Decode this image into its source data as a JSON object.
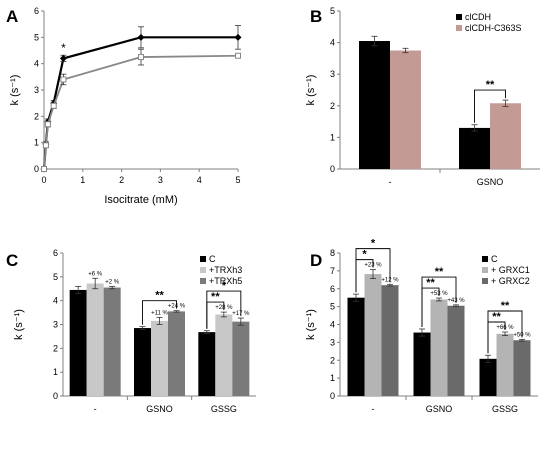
{
  "chart_data": [
    {
      "panel": "A",
      "type": "line",
      "xlabel": "Isocitrate (mM)",
      "ylabel": "k (s⁻¹)",
      "xlim": [
        0,
        5
      ],
      "ylim": [
        0,
        6
      ],
      "xticks": [
        "0",
        "1",
        "2",
        "3",
        "4",
        "5"
      ],
      "yticks": [
        "0",
        "1",
        "2",
        "3",
        "4",
        "5",
        "6"
      ],
      "series": [
        {
          "marker": "filled-diamond",
          "color": "#000000",
          "x": [
            0,
            0.05,
            0.1,
            0.25,
            0.5,
            2.5,
            5
          ],
          "y": [
            0,
            0.95,
            1.8,
            2.5,
            4.2,
            5.0,
            5.0
          ],
          "err": [
            0,
            0.08,
            0.1,
            0.1,
            0.12,
            0.4,
            0.45
          ]
        },
        {
          "marker": "open-square",
          "color": "#888888",
          "x": [
            0,
            0.05,
            0.1,
            0.25,
            0.5,
            2.5,
            5
          ],
          "y": [
            0,
            0.9,
            1.7,
            2.4,
            3.4,
            4.25,
            4.3
          ],
          "err": [
            0,
            0.08,
            0.1,
            0.1,
            0.2,
            0.3,
            0.08
          ]
        }
      ],
      "annotations": [
        {
          "text": "*",
          "x": 0.5,
          "y": 4.45
        }
      ]
    },
    {
      "panel": "B",
      "type": "bar",
      "ylabel": "k (s⁻¹)",
      "ylim": [
        0,
        5
      ],
      "yticks": [
        "0",
        "1",
        "2",
        "3",
        "4",
        "5"
      ],
      "categories": [
        "-",
        "GSNO"
      ],
      "legend_position": "top-right",
      "series": [
        {
          "name": "clCDH",
          "color": "#000000",
          "values": [
            4.05,
            1.3
          ],
          "err": [
            0.15,
            0.1
          ]
        },
        {
          "name": "clCDH-C363S",
          "color": "#c49a95",
          "values": [
            3.75,
            2.08
          ],
          "err": [
            0.07,
            0.1
          ]
        }
      ],
      "significance": [
        {
          "label": "**",
          "category": 1,
          "from": 0,
          "to": 1
        }
      ]
    },
    {
      "panel": "C",
      "type": "bar",
      "ylabel": "k (s⁻¹)",
      "ylim": [
        0,
        6
      ],
      "yticks": [
        "0",
        "1",
        "2",
        "3",
        "4",
        "5",
        "6"
      ],
      "categories": [
        "-",
        "GSNO",
        "GSSG"
      ],
      "legend_position": "top-right",
      "series": [
        {
          "name": "C",
          "color": "#000000",
          "values": [
            4.45,
            2.85,
            2.68
          ],
          "err": [
            0.15,
            0.06,
            0.06
          ],
          "pct": [
            "",
            "",
            ""
          ]
        },
        {
          "name": "+TRXh3",
          "color": "#c8c8c8",
          "values": [
            4.72,
            3.15,
            3.42
          ],
          "err": [
            0.22,
            0.15,
            0.1
          ],
          "pct": [
            "+6 %",
            "+11 %",
            "+28 %"
          ]
        },
        {
          "name": "+TRXh5",
          "color": "#7a7a7a",
          "values": [
            4.55,
            3.55,
            3.12
          ],
          "err": [
            0.05,
            0.03,
            0.15
          ],
          "pct": [
            "+2 %",
            "+24 %",
            "+17 %"
          ]
        }
      ],
      "significance": [
        {
          "label": "**",
          "category": 1,
          "from": 0,
          "to": 2
        },
        {
          "label": "**",
          "category": 2,
          "from": 0,
          "to": 1
        },
        {
          "label": "*",
          "category": 2,
          "from": 0,
          "to": 2
        }
      ]
    },
    {
      "panel": "D",
      "type": "bar",
      "ylabel": "k (s⁻¹)",
      "ylim": [
        0,
        8
      ],
      "yticks": [
        "0",
        "1",
        "2",
        "3",
        "4",
        "5",
        "6",
        "7",
        "8"
      ],
      "categories": [
        "-",
        "GSNO",
        "GSSG"
      ],
      "legend_position": "top-right",
      "series": [
        {
          "name": "C",
          "color": "#000000",
          "values": [
            5.5,
            3.55,
            2.08
          ],
          "err": [
            0.2,
            0.2,
            0.2
          ],
          "pct": [
            "",
            "",
            ""
          ]
        },
        {
          "name": "+ GRXC1",
          "color": "#b4b4b4",
          "values": [
            6.82,
            5.4,
            3.48
          ],
          "err": [
            0.25,
            0.08,
            0.1
          ],
          "pct": [
            "+23 %",
            "+53 %",
            "+66 %"
          ]
        },
        {
          "name": "+ GRXC2",
          "color": "#6a6a6a",
          "values": [
            6.2,
            5.05,
            3.12
          ],
          "err": [
            0.05,
            0.05,
            0.05
          ],
          "pct": [
            "+12 %",
            "+43 %",
            "+50 %"
          ]
        }
      ],
      "significance": [
        {
          "label": "*",
          "category": 0,
          "from": 0,
          "to": 1
        },
        {
          "label": "*",
          "category": 0,
          "from": 0,
          "to": 2
        },
        {
          "label": "**",
          "category": 1,
          "from": 0,
          "to": 1
        },
        {
          "label": "**",
          "category": 1,
          "from": 0,
          "to": 2
        },
        {
          "label": "**",
          "category": 2,
          "from": 0,
          "to": 1
        },
        {
          "label": "**",
          "category": 2,
          "from": 0,
          "to": 2
        }
      ]
    }
  ]
}
